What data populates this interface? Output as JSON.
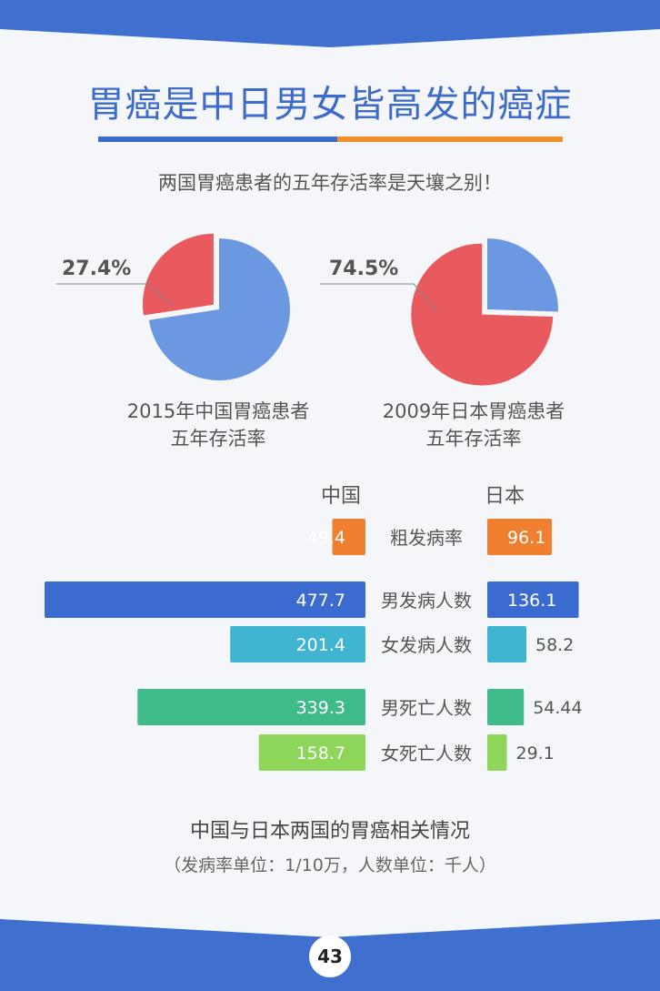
{
  "title": "胃癌是中日男女皆高发的癌症",
  "subtitle": "两国胃癌患者的五年存活率是天壤之别！",
  "page_number": "43",
  "colors": {
    "band": "#3f70cf",
    "title": "#3d6bc9",
    "orange": "#f0802f",
    "blue": "#3c6bd0",
    "cyan": "#3fb5d1",
    "green": "#3fbb8a",
    "lime": "#8dd65a",
    "pie_red": "#e95a5e",
    "pie_blue": "#6b98e0"
  },
  "chart_data": [
    {
      "type": "pie",
      "label": "27.4%",
      "caption_line1": "2015年中国胃癌患者",
      "caption_line2": "五年存活率",
      "slices": [
        {
          "value": 27.4,
          "color": "#e95a5e",
          "highlight": true
        },
        {
          "value": 72.6,
          "color": "#6b98e0"
        }
      ]
    },
    {
      "type": "pie",
      "label": "74.5%",
      "caption_line1": "2009年日本胃癌患者",
      "caption_line2": "五年存活率",
      "slices": [
        {
          "value": 74.5,
          "color": "#e95a5e",
          "highlight": true
        },
        {
          "value": 25.5,
          "color": "#6b98e0"
        }
      ]
    },
    {
      "type": "bar",
      "orientation": "horizontal-butterfly",
      "left_header": "中国",
      "right_header": "日本",
      "categories": [
        "粗发病率",
        "男发病人数",
        "女发病人数",
        "男死亡人数",
        "女死亡人数"
      ],
      "series": [
        {
          "name": "中国",
          "values": [
            49.4,
            477.7,
            201.4,
            339.3,
            158.7
          ],
          "labels": [
            "49.4",
            "477.7",
            "201.4",
            "339.3",
            "158.7"
          ]
        },
        {
          "name": "日本",
          "values": [
            96.1,
            136.1,
            58.2,
            54.44,
            29.1
          ],
          "labels": [
            "96.1",
            "136.1",
            "58.2",
            "54.44",
            "29.1"
          ]
        }
      ],
      "category_colors": [
        "#f0802f",
        "#3c6bd0",
        "#3fb5d1",
        "#3fbb8a",
        "#8dd65a"
      ],
      "title": "中国与日本两国的胃癌相关情况",
      "note": "（发病率单位：1/10万，人数单位：千人）"
    }
  ]
}
